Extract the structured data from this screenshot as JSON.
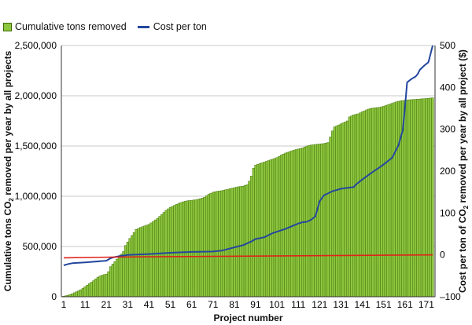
{
  "chart_data": {
    "type": "bar",
    "title": "",
    "xlabel": "Project number",
    "ylabel_left_parts": [
      "Cumulative tons CO",
      "2",
      " removed per year by all projects"
    ],
    "ylabel_right_parts": [
      "Cost per ton of CO",
      "2",
      " removed per year by all project ($)"
    ],
    "legend": {
      "placement": "top-left",
      "entries": [
        "Cumulative tons removed",
        "Cost per ton"
      ]
    },
    "x_range": [
      1,
      174
    ],
    "x_ticks": [
      1,
      11,
      21,
      31,
      41,
      51,
      61,
      71,
      81,
      91,
      101,
      111,
      121,
      131,
      141,
      151,
      161,
      171
    ],
    "y_left_range": [
      0,
      2500000
    ],
    "y_left_ticks": [
      "0",
      "500,000",
      "1,000,000",
      "1,500,000",
      "2,000,000",
      "2,500,000"
    ],
    "y_left_tick_values": [
      0,
      500000,
      1000000,
      1500000,
      2000000,
      2500000
    ],
    "y_right_range": [
      -100,
      500
    ],
    "y_right_ticks": [
      "–100",
      "0",
      "100",
      "200",
      "300",
      "400",
      "500"
    ],
    "y_right_tick_values": [
      -100,
      0,
      100,
      200,
      300,
      400,
      500
    ],
    "series": [
      {
        "name": "Cumulative tons removed",
        "axis": "left",
        "kind": "bar",
        "color": "#8dc63f",
        "edge_color": "#3c6a00",
        "points": [
          [
            1,
            5000
          ],
          [
            3,
            15000
          ],
          [
            5,
            30000
          ],
          [
            7,
            50000
          ],
          [
            9,
            70000
          ],
          [
            11,
            100000
          ],
          [
            13,
            130000
          ],
          [
            15,
            160000
          ],
          [
            17,
            195000
          ],
          [
            19,
            215000
          ],
          [
            21,
            225000
          ],
          [
            22,
            250000
          ],
          [
            23,
            300000
          ],
          [
            25,
            350000
          ],
          [
            27,
            400000
          ],
          [
            29,
            450000
          ],
          [
            30,
            510000
          ],
          [
            32,
            580000
          ],
          [
            34,
            640000
          ],
          [
            35,
            670000
          ],
          [
            37,
            690000
          ],
          [
            39,
            705000
          ],
          [
            41,
            720000
          ],
          [
            43,
            750000
          ],
          [
            45,
            780000
          ],
          [
            47,
            820000
          ],
          [
            49,
            860000
          ],
          [
            51,
            890000
          ],
          [
            53,
            910000
          ],
          [
            55,
            930000
          ],
          [
            57,
            945000
          ],
          [
            59,
            955000
          ],
          [
            61,
            960000
          ],
          [
            63,
            965000
          ],
          [
            65,
            975000
          ],
          [
            67,
            990000
          ],
          [
            69,
            1020000
          ],
          [
            71,
            1040000
          ],
          [
            73,
            1050000
          ],
          [
            75,
            1055000
          ],
          [
            77,
            1065000
          ],
          [
            79,
            1075000
          ],
          [
            81,
            1085000
          ],
          [
            83,
            1095000
          ],
          [
            85,
            1100000
          ],
          [
            87,
            1115000
          ],
          [
            88,
            1150000
          ],
          [
            89,
            1200000
          ],
          [
            90,
            1280000
          ],
          [
            91,
            1310000
          ],
          [
            93,
            1325000
          ],
          [
            95,
            1340000
          ],
          [
            97,
            1355000
          ],
          [
            99,
            1370000
          ],
          [
            101,
            1385000
          ],
          [
            103,
            1410000
          ],
          [
            105,
            1430000
          ],
          [
            107,
            1445000
          ],
          [
            109,
            1460000
          ],
          [
            111,
            1470000
          ],
          [
            113,
            1480000
          ],
          [
            115,
            1500000
          ],
          [
            117,
            1510000
          ],
          [
            119,
            1515000
          ],
          [
            121,
            1520000
          ],
          [
            123,
            1525000
          ],
          [
            125,
            1535000
          ],
          [
            126,
            1590000
          ],
          [
            127,
            1650000
          ],
          [
            128,
            1690000
          ],
          [
            130,
            1710000
          ],
          [
            132,
            1730000
          ],
          [
            134,
            1750000
          ],
          [
            135,
            1790000
          ],
          [
            137,
            1810000
          ],
          [
            139,
            1820000
          ],
          [
            141,
            1840000
          ],
          [
            143,
            1860000
          ],
          [
            145,
            1875000
          ],
          [
            147,
            1880000
          ],
          [
            149,
            1885000
          ],
          [
            151,
            1895000
          ],
          [
            153,
            1910000
          ],
          [
            155,
            1925000
          ],
          [
            157,
            1940000
          ],
          [
            159,
            1950000
          ],
          [
            161,
            1955000
          ],
          [
            163,
            1960000
          ],
          [
            165,
            1963000
          ],
          [
            167,
            1966000
          ],
          [
            169,
            1970000
          ],
          [
            171,
            1973000
          ],
          [
            174,
            1980000
          ]
        ]
      },
      {
        "name": "Cost per ton",
        "axis": "right",
        "kind": "line",
        "color": "#24479e",
        "points": [
          [
            1,
            -25
          ],
          [
            3,
            -22
          ],
          [
            5,
            -20
          ],
          [
            11,
            -18
          ],
          [
            21,
            -14
          ],
          [
            23,
            -8
          ],
          [
            25,
            -5
          ],
          [
            27,
            -3
          ],
          [
            31,
            0
          ],
          [
            41,
            2
          ],
          [
            51,
            5
          ],
          [
            61,
            7
          ],
          [
            71,
            8
          ],
          [
            75,
            10
          ],
          [
            81,
            18
          ],
          [
            85,
            23
          ],
          [
            89,
            32
          ],
          [
            91,
            38
          ],
          [
            95,
            42
          ],
          [
            99,
            52
          ],
          [
            105,
            62
          ],
          [
            111,
            75
          ],
          [
            113,
            78
          ],
          [
            115,
            79
          ],
          [
            117,
            84
          ],
          [
            119,
            92
          ],
          [
            121,
            128
          ],
          [
            123,
            142
          ],
          [
            127,
            152
          ],
          [
            131,
            158
          ],
          [
            137,
            162
          ],
          [
            138,
            168
          ],
          [
            139,
            172
          ],
          [
            141,
            180
          ],
          [
            145,
            195
          ],
          [
            150,
            212
          ],
          [
            152,
            220
          ],
          [
            155,
            232
          ],
          [
            158,
            262
          ],
          [
            160,
            298
          ],
          [
            161,
            352
          ],
          [
            162,
            412
          ],
          [
            164,
            420
          ],
          [
            166,
            426
          ],
          [
            167,
            432
          ],
          [
            168,
            442
          ],
          [
            170,
            452
          ],
          [
            172,
            460
          ],
          [
            173,
            480
          ],
          [
            174,
            500
          ]
        ]
      },
      {
        "name": "",
        "axis": "right",
        "kind": "reference-line",
        "color": "#e0231b",
        "points": [
          [
            1,
            -7
          ],
          [
            30,
            -5
          ],
          [
            174,
            0
          ]
        ]
      }
    ]
  }
}
